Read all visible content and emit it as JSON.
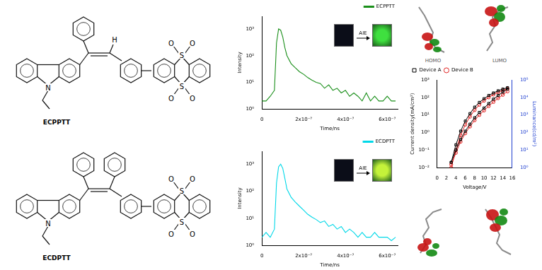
{
  "structures": [
    {
      "name": "ECPPTT",
      "atoms": [
        "N",
        "S",
        "O",
        "H"
      ]
    },
    {
      "name": "ECDPTT",
      "atoms": [
        "N",
        "S",
        "O"
      ]
    }
  ],
  "orbitals": [
    {
      "label": "HOMO"
    },
    {
      "label": "LUMO"
    }
  ],
  "chart_data": [
    {
      "type": "line",
      "y_label": "Intensity",
      "x_label": "Time/ns",
      "log": "y",
      "grid": false,
      "legend": "upper right",
      "annotation": "AIE",
      "x": [
        0,
        2e-08,
        4e-08,
        6e-08,
        7e-08,
        8e-08,
        9e-08,
        1e-07,
        1.1e-07,
        1.2e-07,
        1.4e-07,
        1.6e-07,
        1.8e-07,
        2e-07,
        2.2e-07,
        2.4e-07,
        2.6e-07,
        2.8e-07,
        3e-07,
        3.2e-07,
        3.4e-07,
        3.6e-07,
        3.8e-07,
        4e-07,
        4.2e-07,
        4.4e-07,
        4.6e-07,
        4.8e-07,
        5e-07,
        5.2e-07,
        5.4e-07,
        5.6e-07,
        5.8e-07,
        6e-07,
        6.2e-07,
        6.4e-07
      ],
      "series": [
        {
          "name": "ECPPTT",
          "color": "#1a8f1a",
          "line_style": "solid",
          "values": [
            2,
            2,
            3,
            5,
            300,
            1000,
            900,
            500,
            200,
            100,
            50,
            35,
            25,
            20,
            15,
            12,
            10,
            9,
            6,
            8,
            5,
            6,
            4,
            5,
            3,
            4,
            3,
            2,
            4,
            2,
            3,
            2,
            2,
            3,
            2,
            2
          ]
        }
      ],
      "xlim": [
        0,
        6.5e-07
      ],
      "xticks": [
        0,
        {
          "value": 2e-07,
          "label": "2x10⁻⁷"
        },
        {
          "value": 4e-07,
          "label": "4x10⁻⁷"
        },
        {
          "value": 6e-07,
          "label": "6x10⁻⁷"
        }
      ],
      "ylim": [
        1,
        3000
      ],
      "yticks": [
        {
          "value": 1,
          "label": "10⁰"
        },
        {
          "value": 10,
          "label": "10¹"
        },
        {
          "value": 100,
          "label": "10²"
        },
        {
          "value": 1000,
          "label": "10³"
        }
      ]
    },
    {
      "type": "line",
      "y_label": "Intensity",
      "x_label": "Time/ns",
      "log": "y",
      "grid": false,
      "legend": "upper right",
      "annotation": "AIE",
      "x": [
        0,
        2e-08,
        4e-08,
        6e-08,
        7e-08,
        8e-08,
        9e-08,
        1e-07,
        1.1e-07,
        1.2e-07,
        1.4e-07,
        1.6e-07,
        1.8e-07,
        2e-07,
        2.2e-07,
        2.4e-07,
        2.6e-07,
        2.8e-07,
        3e-07,
        3.2e-07,
        3.4e-07,
        3.6e-07,
        3.8e-07,
        4e-07,
        4.2e-07,
        4.4e-07,
        4.6e-07,
        4.8e-07,
        5e-07,
        5.2e-07,
        5.4e-07,
        5.6e-07,
        5.8e-07,
        6e-07,
        6.2e-07,
        6.4e-07
      ],
      "series": [
        {
          "name": "ECDPTT",
          "color": "#00d8e8",
          "line_style": "solid",
          "values": [
            2,
            3,
            2,
            4,
            200,
            800,
            1000,
            700,
            300,
            120,
            60,
            40,
            28,
            20,
            14,
            11,
            9,
            7,
            8,
            5,
            6,
            4,
            5,
            3,
            4,
            3,
            2,
            3,
            2,
            2,
            3,
            2,
            2,
            2,
            1.5,
            2
          ]
        }
      ],
      "xlim": [
        0,
        6.5e-07
      ],
      "xticks": [
        0,
        {
          "value": 2e-07,
          "label": "2x10⁻⁷"
        },
        {
          "value": 4e-07,
          "label": "4x10⁻⁷"
        },
        {
          "value": 6e-07,
          "label": "6x10⁻⁷"
        }
      ],
      "ylim": [
        1,
        3000
      ],
      "yticks": [
        {
          "value": 1,
          "label": "10⁰"
        },
        {
          "value": 10,
          "label": "10¹"
        },
        {
          "value": 100,
          "label": "10²"
        },
        {
          "value": 1000,
          "label": "10³"
        }
      ]
    },
    {
      "type": "line",
      "x_label": "Voltage/V",
      "y_label": "Current density(mA/cm²)",
      "y2_label": "Luminance(cd/m²)",
      "log": "y",
      "grid": false,
      "legend": "upper left",
      "x": [
        3,
        4,
        5,
        6,
        7,
        8,
        9,
        10,
        11,
        12,
        13,
        14,
        15
      ],
      "series": [
        {
          "name": "Device A",
          "color": "#000000",
          "marker": "square",
          "line_style": "solid",
          "values": [
            0.02,
            0.1,
            0.4,
            1.2,
            3,
            7,
            14,
            25,
            45,
            80,
            130,
            200,
            300
          ]
        },
        {
          "name": "Device B",
          "color": "#e02020",
          "marker": "circle",
          "line_style": "solid",
          "values": [
            0.015,
            0.07,
            0.3,
            0.9,
            2.2,
            5,
            10,
            18,
            32,
            55,
            90,
            140,
            220
          ]
        },
        {
          "name": "Device A",
          "color": "#000000",
          "marker": "square",
          "line_style": "solid",
          "axis": "y2",
          "values": [
            2,
            20,
            120,
            450,
            1200,
            2800,
            5200,
            8500,
            13000,
            18000,
            24000,
            30000,
            36000
          ]
        },
        {
          "name": "Device B",
          "color": "#e02020",
          "marker": "circle",
          "line_style": "solid",
          "axis": "y2",
          "values": [
            1,
            10,
            70,
            280,
            800,
            1900,
            3800,
            6500,
            10000,
            14500,
            19500,
            25000,
            31000
          ]
        }
      ],
      "xlim": [
        0,
        16
      ],
      "xticks": [
        0,
        2,
        4,
        6,
        8,
        10,
        12,
        14,
        16
      ],
      "ylim": [
        0.01,
        1000
      ],
      "yticks": [
        {
          "value": 0.01,
          "label": "10⁻²"
        },
        {
          "value": 0.1,
          "label": "10⁻¹"
        },
        {
          "value": 1,
          "label": "10⁰"
        },
        {
          "value": 10,
          "label": "10¹"
        },
        {
          "value": 100,
          "label": "10²"
        },
        {
          "value": 1000,
          "label": "10³"
        }
      ],
      "y2lim": [
        1,
        100000
      ],
      "y2ticks": [
        {
          "value": 1,
          "label": "10⁰"
        },
        {
          "value": 10,
          "label": "10¹"
        },
        {
          "value": 100,
          "label": "10²"
        },
        {
          "value": 1000,
          "label": "10³"
        },
        {
          "value": 10000,
          "label": "10⁴"
        },
        {
          "value": 100000,
          "label": "10⁵"
        }
      ]
    }
  ]
}
